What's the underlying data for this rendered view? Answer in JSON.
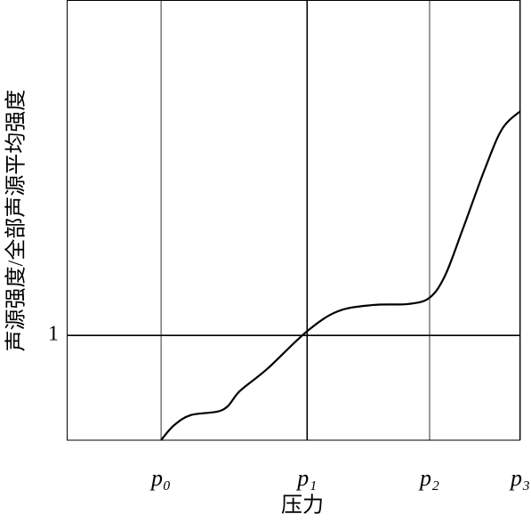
{
  "chart_data": {
    "type": "line",
    "xlabel": "压力",
    "ylabel": "声源强度/全部声源平均强度",
    "x": [
      1.04,
      1.18,
      1.37,
      1.72,
      1.91,
      2.21,
      2.65,
      2.99,
      3.38,
      3.77,
      4.0,
      4.17,
      4.36,
      4.61,
      4.8,
      5.0
    ],
    "series": [
      {
        "color": "#000000",
        "values": [
          0,
          0.14,
          0.24,
          0.29,
          0.47,
          0.68,
          1.04,
          1.23,
          1.29,
          1.3,
          1.36,
          1.57,
          2.0,
          2.59,
          2.97,
          3.14
        ]
      }
    ],
    "xlim": [
      0,
      5
    ],
    "ylim": [
      0,
      4.2
    ],
    "xticks": [
      {
        "value": 1.04,
        "label": "p₀"
      },
      {
        "value": 2.65,
        "label": "p₁"
      },
      {
        "value": 4.0,
        "label": "p₂"
      },
      {
        "value": 5.0,
        "label": "p₃"
      }
    ],
    "yticks": [
      1
    ],
    "grid": true
  }
}
